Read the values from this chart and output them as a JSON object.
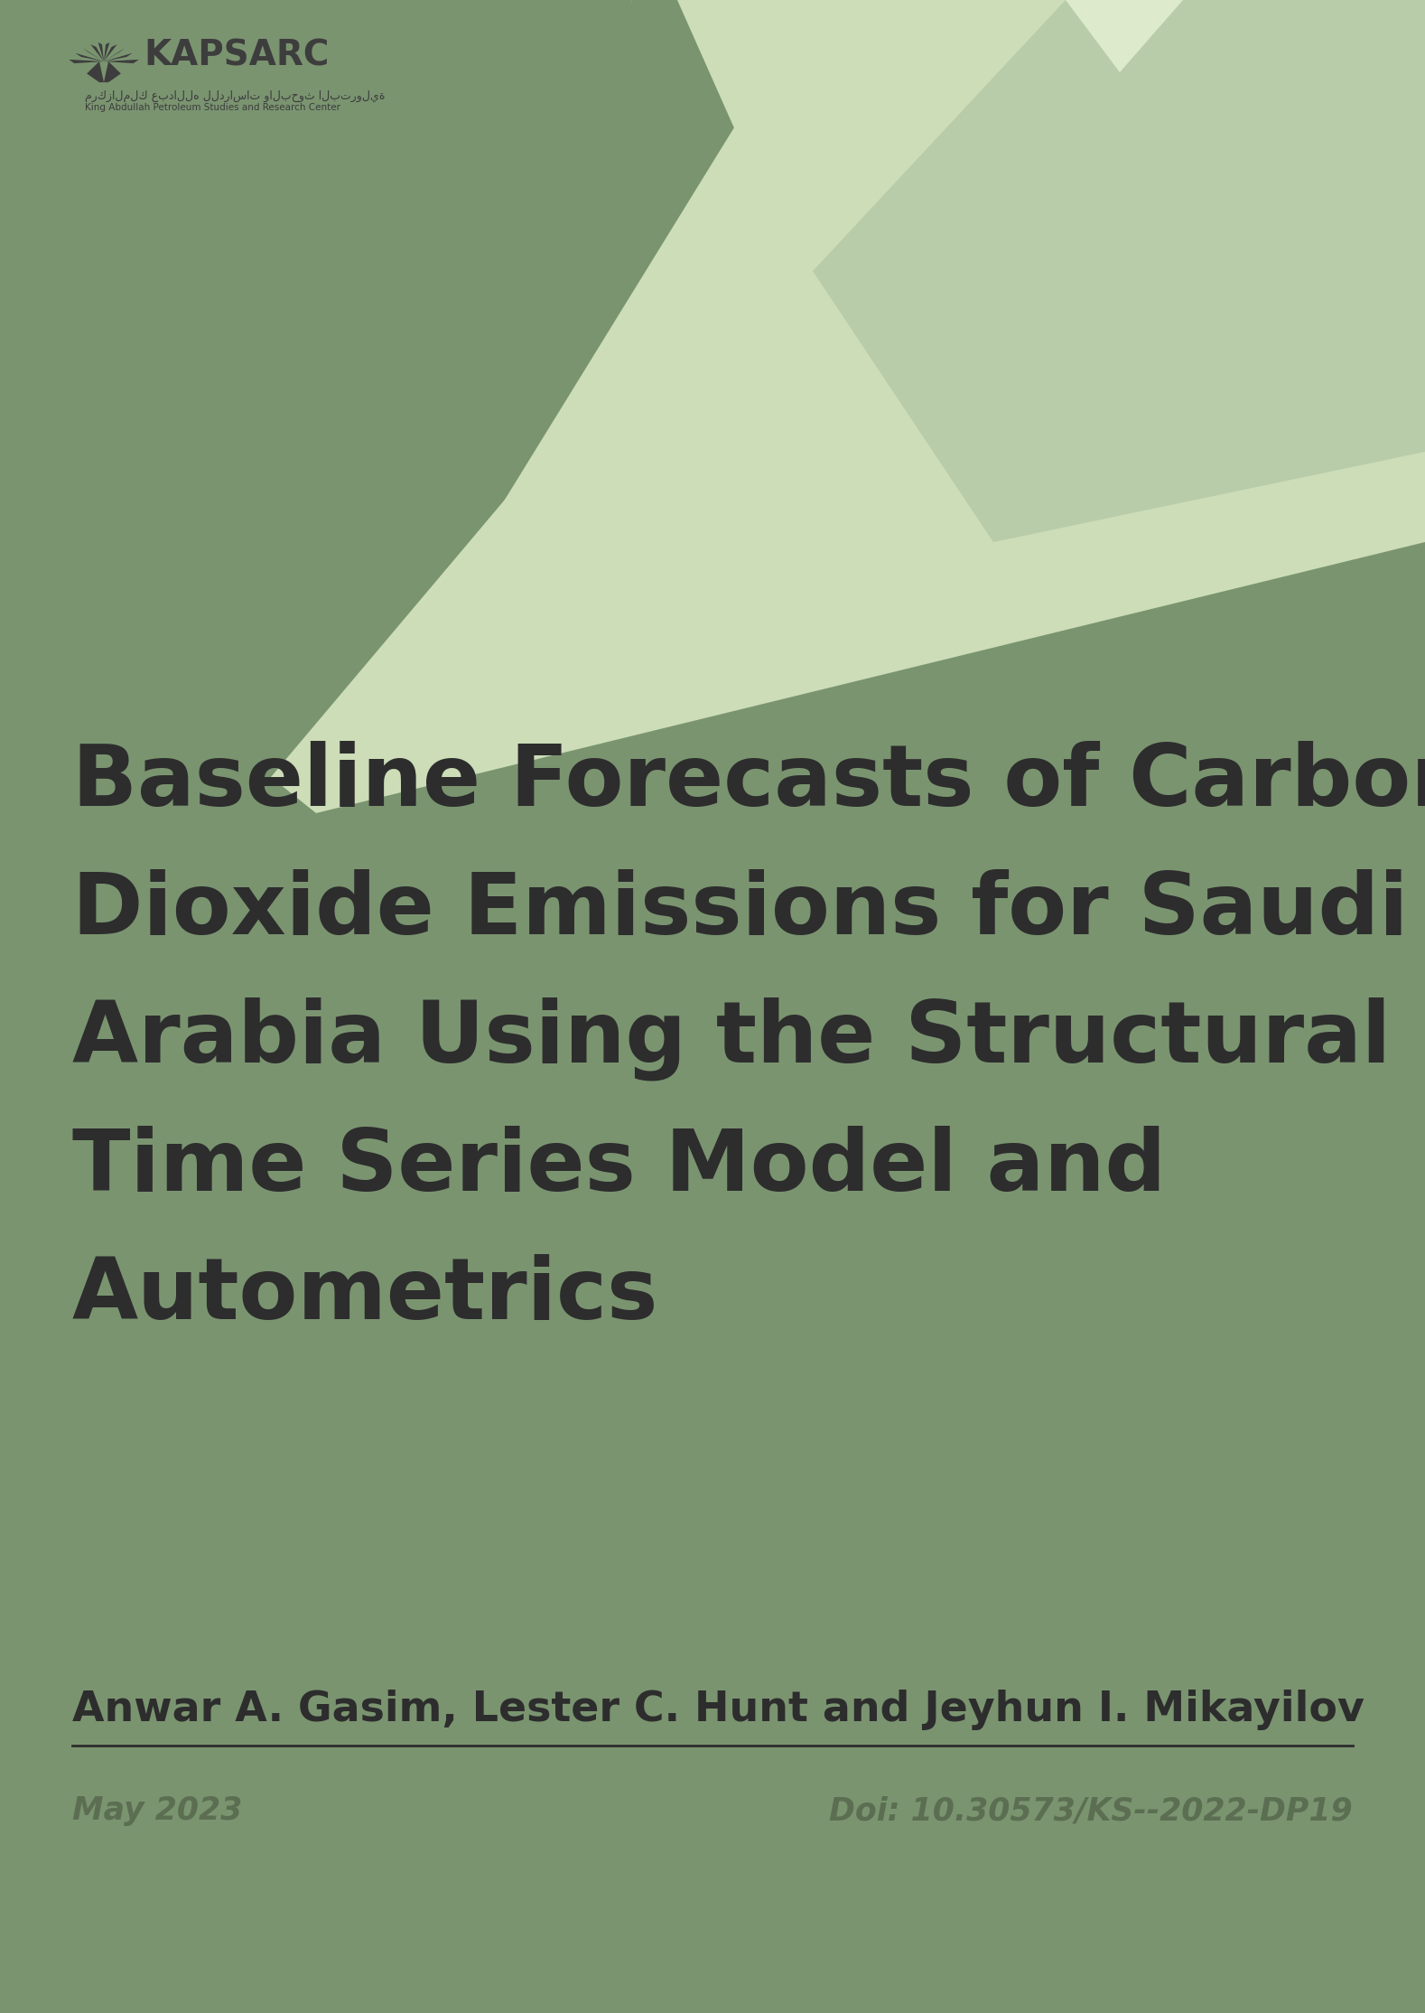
{
  "bg_color": "#7a9470",
  "title_lines": [
    "Baseline Forecasts of Carbon",
    "Dioxide Emissions for Saudi",
    "Arabia Using the Structural",
    "Time Series Model and",
    "Autometrics"
  ],
  "authors": "Anwar A. Gasim, Lester C. Hunt and Jeyhun I. Mikayilov",
  "date": "May 2023",
  "doi": "Doi: 10.30573/KS--2022-DP19",
  "title_color": "#2d2d2d",
  "authors_color": "#2d2d2d",
  "date_color": "#5c6e52",
  "kapsarc_text": "KAPSARC",
  "arabic_line1": "مركزالملك عبدالله للدراسات والبحوث البترولية",
  "english_subtitle": "King Abdullah Petroleum Studies and Research Center",
  "logo_color": "#3d3d3d",
  "poly1_color": "#ccddb8",
  "poly2_color": "#7a9470",
  "poly3_color": "#b8ccaa",
  "poly4_color": "#deeacc",
  "poly5_color": "#c0d4a8"
}
